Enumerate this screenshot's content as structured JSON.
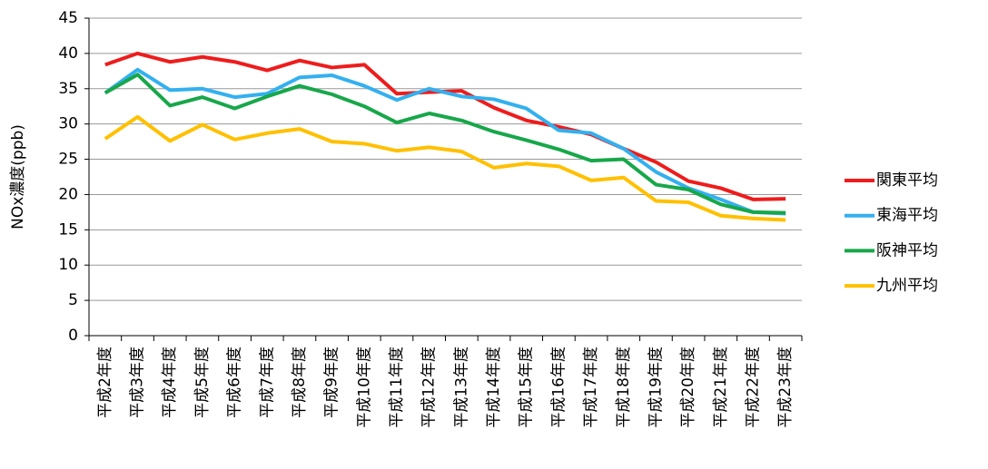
{
  "chart_data": {
    "type": "line",
    "ylabel": "NOx濃度(ppb)",
    "categories": [
      "平成2年度",
      "平成3年度",
      "平成4年度",
      "平成5年度",
      "平成6年度",
      "平成7年度",
      "平成8年度",
      "平成9年度",
      "平成10年度",
      "平成11年度",
      "平成12年度",
      "平成13年度",
      "平成14年度",
      "平成15年度",
      "平成16年度",
      "平成17年度",
      "平成18年度",
      "平成19年度",
      "平成20年度",
      "平成21年度",
      "平成22年度",
      "平成23年度"
    ],
    "series": [
      {
        "name": "関東平均",
        "color": "#ee1c1c",
        "values": [
          38.4,
          40,
          38.8,
          39.5,
          38.8,
          37.6,
          39,
          38,
          38.4,
          34.3,
          34.5,
          34.7,
          32.3,
          30.5,
          29.6,
          28.5,
          26.5,
          24.6,
          21.9,
          20.9,
          19.3,
          19.4
        ]
      },
      {
        "name": "東海平均",
        "color": "#33b0ef",
        "values": [
          34.4,
          37.7,
          34.8,
          35,
          33.8,
          34.3,
          36.6,
          36.9,
          35.4,
          33.4,
          35,
          33.9,
          33.5,
          32.2,
          29.1,
          28.7,
          26.5,
          23.2,
          20.9,
          19.3,
          17.5,
          17.3
        ]
      },
      {
        "name": "阪神平均",
        "color": "#17a74a",
        "values": [
          34.4,
          37,
          32.6,
          33.8,
          32.2,
          33.9,
          35.4,
          34.2,
          32.5,
          30.2,
          31.5,
          30.5,
          28.9,
          27.7,
          26.4,
          24.8,
          25,
          21.4,
          20.7,
          18.6,
          17.5,
          17.4
        ]
      },
      {
        "name": "九州平均",
        "color": "#ffc000",
        "values": [
          27.9,
          31,
          27.6,
          29.9,
          27.8,
          28.7,
          29.3,
          27.5,
          27.2,
          26.2,
          26.7,
          26.1,
          23.8,
          24.4,
          24,
          22,
          22.4,
          19.1,
          18.9,
          17,
          16.6,
          16.4
        ]
      }
    ],
    "ylim": [
      0,
      45
    ],
    "yticks": [
      0,
      5,
      10,
      15,
      20,
      25,
      30,
      35,
      40,
      45
    ],
    "grid": true,
    "legend": "right"
  }
}
